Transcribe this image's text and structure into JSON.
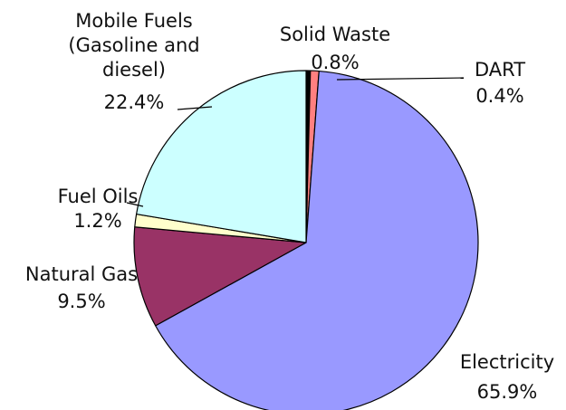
{
  "chart_data": {
    "type": "pie",
    "slices": [
      {
        "name": "DART",
        "value": 0.4,
        "value_label": "0.4%",
        "color": "#000000"
      },
      {
        "name": "Solid Waste",
        "value": 0.8,
        "value_label": "0.8%",
        "color": "#ff8080"
      },
      {
        "name": "Electricity",
        "value": 65.9,
        "value_label": "65.9%",
        "color": "#9999ff"
      },
      {
        "name": "Natural Gas",
        "value": 9.5,
        "value_label": "9.5%",
        "color": "#993366"
      },
      {
        "name": "Fuel Oils",
        "value": 1.2,
        "value_label": "1.2%",
        "color": "#ffffcc"
      },
      {
        "name": "Mobile Fuels (Gasoline and diesel)",
        "value": 22.4,
        "value_label": "22.4%",
        "color": "#ccffff"
      }
    ],
    "labels": {
      "mobile": [
        "Mobile Fuels",
        "(Gasoline and",
        "diesel)",
        "22.4%"
      ],
      "solid": [
        "Solid Waste",
        "0.8%"
      ],
      "dart": [
        "DART",
        "0.4%"
      ],
      "fuel": [
        "Fuel Oils",
        "1.2%"
      ],
      "gas": [
        "Natural Gas",
        "9.5%"
      ],
      "elec": [
        "Electricity",
        "65.9%"
      ]
    }
  }
}
